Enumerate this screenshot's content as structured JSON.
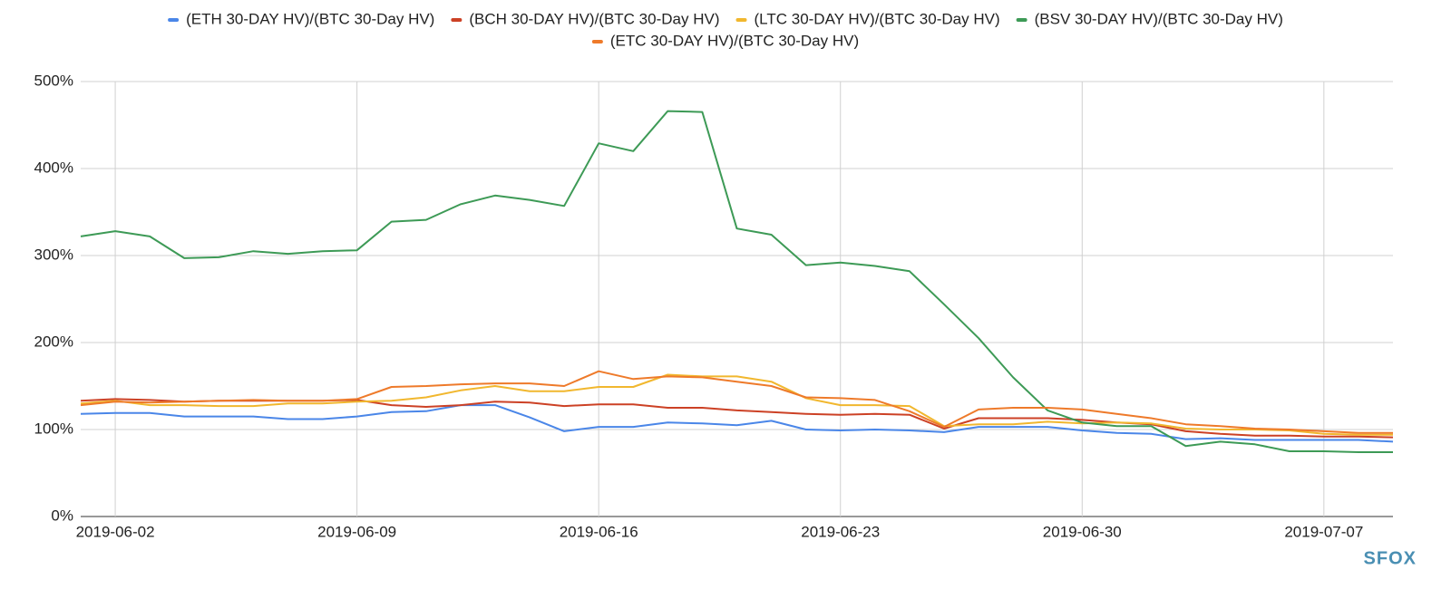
{
  "chart_data": {
    "type": "line",
    "x": [
      "2019-06-01",
      "2019-06-02",
      "2019-06-03",
      "2019-06-04",
      "2019-06-05",
      "2019-06-06",
      "2019-06-07",
      "2019-06-08",
      "2019-06-09",
      "2019-06-10",
      "2019-06-11",
      "2019-06-12",
      "2019-06-13",
      "2019-06-14",
      "2019-06-15",
      "2019-06-16",
      "2019-06-17",
      "2019-06-18",
      "2019-06-19",
      "2019-06-20",
      "2019-06-21",
      "2019-06-22",
      "2019-06-23",
      "2019-06-24",
      "2019-06-25",
      "2019-06-26",
      "2019-06-27",
      "2019-06-28",
      "2019-06-29",
      "2019-06-30",
      "2019-07-01",
      "2019-07-02",
      "2019-07-03",
      "2019-07-04",
      "2019-07-05",
      "2019-07-06",
      "2019-07-07",
      "2019-07-08",
      "2019-07-09"
    ],
    "xticks": [
      "2019-06-02",
      "2019-06-09",
      "2019-06-16",
      "2019-06-23",
      "2019-06-30",
      "2019-07-07"
    ],
    "ylim": [
      0,
      500
    ],
    "yticks": [
      {
        "value": 0,
        "label": "0%"
      },
      {
        "value": 100,
        "label": "100%"
      },
      {
        "value": 200,
        "label": "200%"
      },
      {
        "value": 300,
        "label": "300%"
      },
      {
        "value": 400,
        "label": "400%"
      },
      {
        "value": 500,
        "label": "500%"
      }
    ],
    "grid": true,
    "legend": "top",
    "series": [
      {
        "name": "(ETH 30-DAY HV)/(BTC 30-Day HV)",
        "color": "#4a86e8",
        "values": [
          118,
          119,
          119,
          115,
          115,
          115,
          112,
          112,
          115,
          120,
          121,
          128,
          128,
          114,
          98,
          103,
          103,
          108,
          107,
          105,
          110,
          100,
          99,
          100,
          99,
          97,
          103,
          103,
          103,
          99,
          96,
          95,
          89,
          90,
          88,
          88,
          88,
          88,
          86
        ]
      },
      {
        "name": "(BCH 30-DAY HV)/(BTC 30-Day HV)",
        "color": "#cc4125",
        "values": [
          133,
          135,
          134,
          132,
          133,
          133,
          133,
          133,
          134,
          128,
          126,
          128,
          132,
          131,
          127,
          129,
          129,
          125,
          125,
          122,
          120,
          118,
          117,
          118,
          117,
          101,
          113,
          113,
          113,
          111,
          108,
          106,
          98,
          95,
          93,
          93,
          92,
          92,
          91
        ]
      },
      {
        "name": "(LTC 30-DAY HV)/(BTC 30-Day HV)",
        "color": "#f1b72e",
        "values": [
          130,
          133,
          128,
          128,
          127,
          127,
          130,
          130,
          132,
          133,
          137,
          145,
          150,
          144,
          144,
          149,
          149,
          163,
          161,
          161,
          155,
          136,
          128,
          128,
          127,
          104,
          106,
          106,
          109,
          107,
          108,
          107,
          101,
          100,
          100,
          99,
          95,
          94,
          94
        ]
      },
      {
        "name": "(BSV 30-DAY HV)/(BTC 30-Day HV)",
        "color": "#3d9a56",
        "values": [
          322,
          328,
          322,
          297,
          298,
          305,
          302,
          305,
          306,
          339,
          341,
          359,
          369,
          364,
          357,
          429,
          420,
          466,
          465,
          331,
          324,
          289,
          292,
          288,
          282,
          244,
          205,
          160,
          122,
          108,
          104,
          104,
          81,
          86,
          83,
          75,
          75,
          74,
          74
        ]
      },
      {
        "name": "(ETC 30-DAY HV)/(BTC 30-Day HV)",
        "color": "#ee7a2a",
        "values": [
          128,
          132,
          131,
          132,
          133,
          134,
          133,
          133,
          135,
          149,
          150,
          152,
          153,
          153,
          150,
          167,
          158,
          161,
          160,
          155,
          150,
          137,
          136,
          134,
          121,
          103,
          123,
          125,
          125,
          123,
          118,
          113,
          106,
          104,
          101,
          100,
          98,
          96,
          96
        ]
      }
    ],
    "logo": "SFOX"
  }
}
